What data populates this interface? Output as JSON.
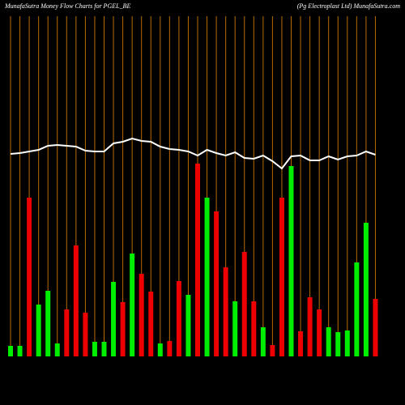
{
  "chart_data": {
    "type": "bar",
    "title": "MunafaSutra  Money Flow  Charts for PGEL_BE",
    "subtitle": "(Pg Electroplast Ltd) MunafaSutra.com",
    "values": [
      13,
      13,
      196,
      64,
      81,
      16,
      58,
      137,
      54,
      18,
      18,
      92,
      67,
      127,
      102,
      80,
      16,
      19,
      93,
      76,
      238,
      196,
      179,
      110,
      68,
      129,
      68,
      36,
      14,
      196,
      235,
      31,
      73,
      58,
      36,
      30,
      32,
      116,
      165,
      71
    ],
    "colors": [
      "#00ee00",
      "#00ee00",
      "#ee0000",
      "#00ee00",
      "#00ee00",
      "#00ee00",
      "#ee0000",
      "#ee0000",
      "#ee0000",
      "#00ee00",
      "#00ee00",
      "#00ee00",
      "#ee0000",
      "#00ee00",
      "#ee0000",
      "#ee0000",
      "#00ee00",
      "#ee0000",
      "#ee0000",
      "#00ee00",
      "#ee0000",
      "#00ee00",
      "#ee0000",
      "#ee0000",
      "#00ee00",
      "#ee0000",
      "#ee0000",
      "#00ee00",
      "#ee0000",
      "#ee0000",
      "#00ee00",
      "#ee0000",
      "#ee0000",
      "#ee0000",
      "#00ee00",
      "#00ee00",
      "#00ee00",
      "#00ee00",
      "#00ee00",
      "#ee0000"
    ],
    "line_values": [
      250,
      251,
      253,
      255,
      260,
      261,
      260,
      259,
      254,
      253,
      253,
      263,
      265,
      269,
      266,
      265,
      259,
      256,
      255,
      253,
      248,
      255,
      251,
      248,
      252,
      245,
      244,
      248,
      241,
      232,
      247,
      248,
      242,
      242,
      247,
      243,
      247,
      248,
      253,
      249
    ],
    "line_color": "#ffffff",
    "gridline_color": "#b86a00",
    "ylim": [
      0,
      420
    ]
  }
}
